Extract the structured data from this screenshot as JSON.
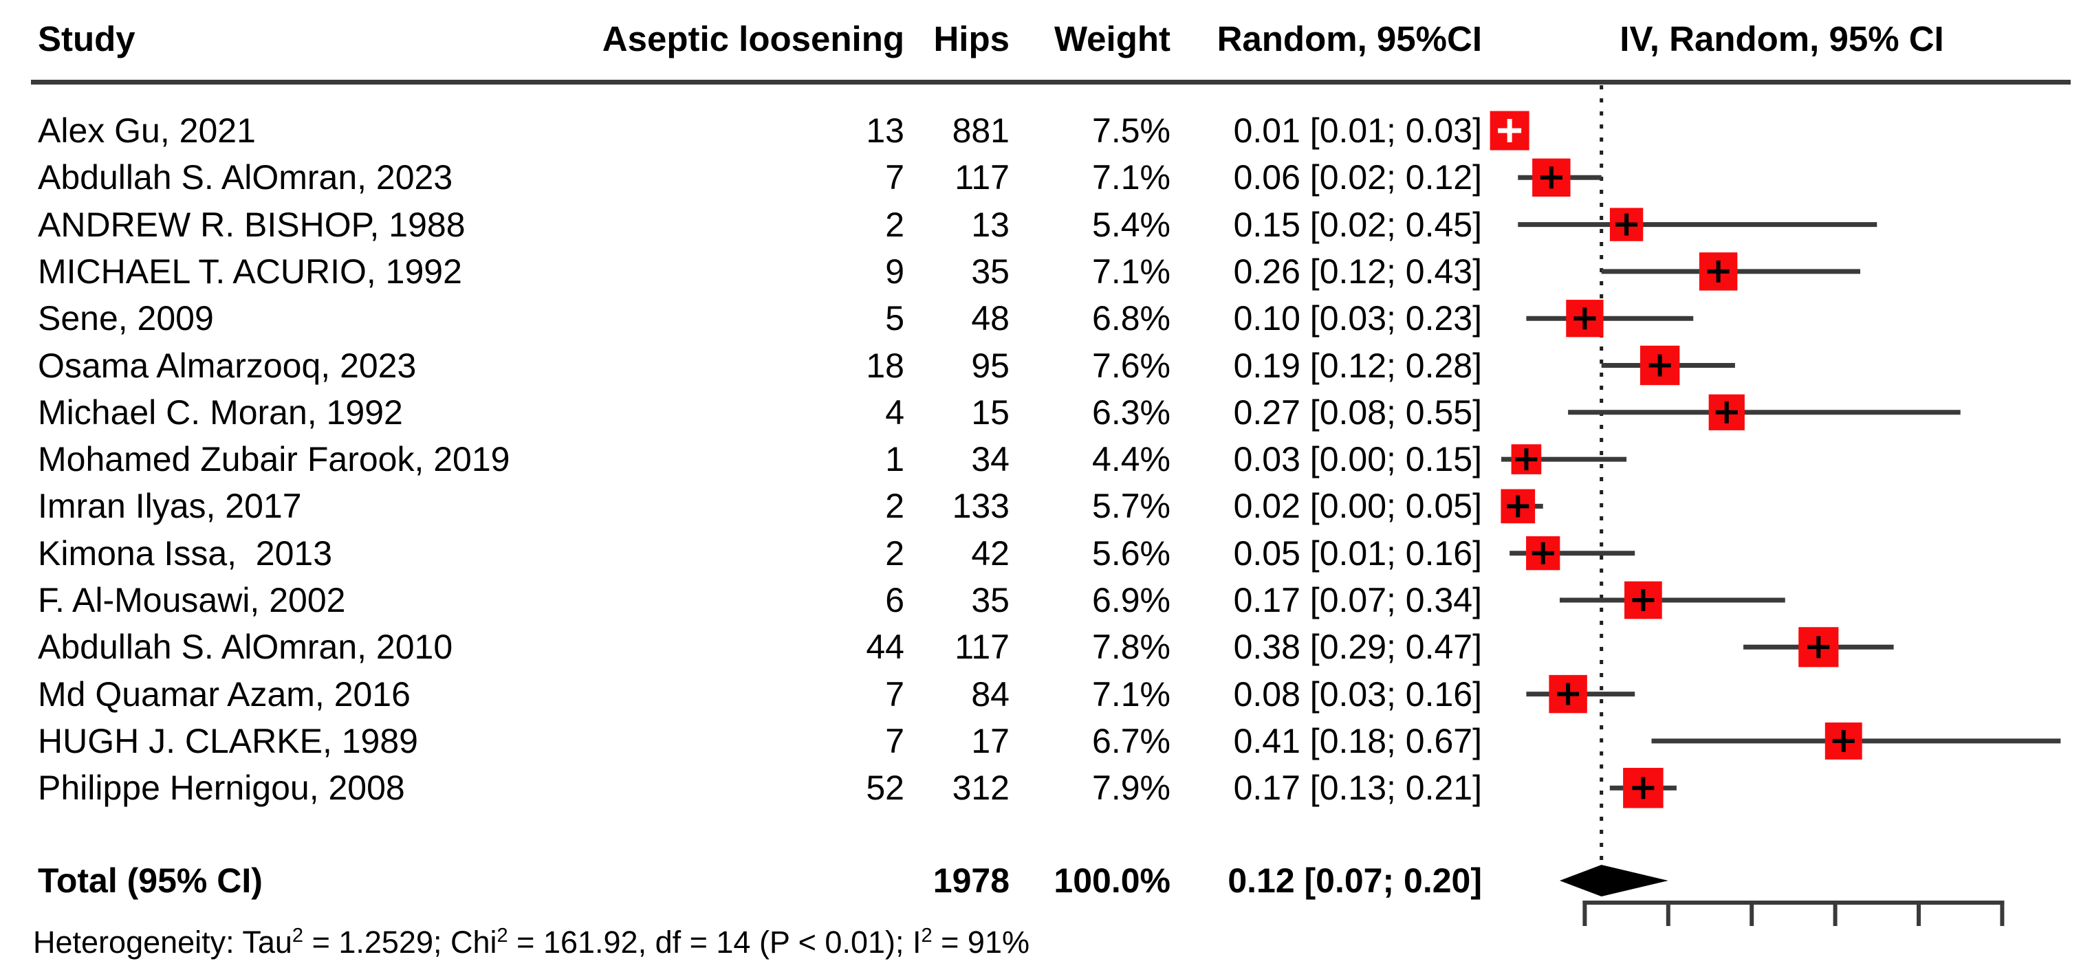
{
  "chart_data": {
    "type": "forest",
    "effect_measure": "proportion (IV, random effects)",
    "columns": [
      "Study",
      "Aseptic loosening",
      "Hips",
      "Weight",
      "Random, 95%CI",
      "IV, Random, 95% CI"
    ],
    "studies": [
      {
        "name": "Alex Gu, 2021",
        "events": 13,
        "hips": 881,
        "weight": "7.5%",
        "weight_value": 7.5,
        "estimate": 0.01,
        "ci_lower": 0.01,
        "ci_upper": 0.03,
        "ci_label": "0.01 [0.01; 0.03]"
      },
      {
        "name": "Abdullah S. AlOmran, 2023",
        "events": 7,
        "hips": 117,
        "weight": "7.1%",
        "weight_value": 7.1,
        "estimate": 0.06,
        "ci_lower": 0.02,
        "ci_upper": 0.12,
        "ci_label": "0.06 [0.02; 0.12]"
      },
      {
        "name": "ANDREW R. BISHOP, 1988",
        "events": 2,
        "hips": 13,
        "weight": "5.4%",
        "weight_value": 5.4,
        "estimate": 0.15,
        "ci_lower": 0.02,
        "ci_upper": 0.45,
        "ci_label": "0.15 [0.02; 0.45]"
      },
      {
        "name": "MICHAEL T. ACURIO, 1992",
        "events": 9,
        "hips": 35,
        "weight": "7.1%",
        "weight_value": 7.1,
        "estimate": 0.26,
        "ci_lower": 0.12,
        "ci_upper": 0.43,
        "ci_label": "0.26 [0.12; 0.43]"
      },
      {
        "name": "Sene, 2009",
        "events": 5,
        "hips": 48,
        "weight": "6.8%",
        "weight_value": 6.8,
        "estimate": 0.1,
        "ci_lower": 0.03,
        "ci_upper": 0.23,
        "ci_label": "0.10 [0.03; 0.23]"
      },
      {
        "name": "Osama Almarzooq, 2023",
        "events": 18,
        "hips": 95,
        "weight": "7.6%",
        "weight_value": 7.6,
        "estimate": 0.19,
        "ci_lower": 0.12,
        "ci_upper": 0.28,
        "ci_label": "0.19 [0.12; 0.28]"
      },
      {
        "name": "Michael C. Moran, 1992",
        "events": 4,
        "hips": 15,
        "weight": "6.3%",
        "weight_value": 6.3,
        "estimate": 0.27,
        "ci_lower": 0.08,
        "ci_upper": 0.55,
        "ci_label": "0.27 [0.08; 0.55]"
      },
      {
        "name": "Mohamed Zubair Farook, 2019",
        "events": 1,
        "hips": 34,
        "weight": "4.4%",
        "weight_value": 4.4,
        "estimate": 0.03,
        "ci_lower": 0.0,
        "ci_upper": 0.15,
        "ci_label": "0.03 [0.00; 0.15]"
      },
      {
        "name": "Imran Ilyas, 2017",
        "events": 2,
        "hips": 133,
        "weight": "5.7%",
        "weight_value": 5.7,
        "estimate": 0.02,
        "ci_lower": 0.0,
        "ci_upper": 0.05,
        "ci_label": "0.02 [0.00; 0.05]"
      },
      {
        "name": "Kimona Issa,  2013",
        "events": 2,
        "hips": 42,
        "weight": "5.6%",
        "weight_value": 5.6,
        "estimate": 0.05,
        "ci_lower": 0.01,
        "ci_upper": 0.16,
        "ci_label": "0.05 [0.01; 0.16]"
      },
      {
        "name": "F. Al-Mousawi, 2002",
        "events": 6,
        "hips": 35,
        "weight": "6.9%",
        "weight_value": 6.9,
        "estimate": 0.17,
        "ci_lower": 0.07,
        "ci_upper": 0.34,
        "ci_label": "0.17 [0.07; 0.34]"
      },
      {
        "name": "Abdullah S. AlOmran, 2010",
        "events": 44,
        "hips": 117,
        "weight": "7.8%",
        "weight_value": 7.8,
        "estimate": 0.38,
        "ci_lower": 0.29,
        "ci_upper": 0.47,
        "ci_label": "0.38 [0.29; 0.47]"
      },
      {
        "name": "Md Quamar Azam, 2016",
        "events": 7,
        "hips": 84,
        "weight": "7.1%",
        "weight_value": 7.1,
        "estimate": 0.08,
        "ci_lower": 0.03,
        "ci_upper": 0.16,
        "ci_label": "0.08 [0.03; 0.16]"
      },
      {
        "name": "HUGH J. CLARKE, 1989",
        "events": 7,
        "hips": 17,
        "weight": "6.7%",
        "weight_value": 6.7,
        "estimate": 0.41,
        "ci_lower": 0.18,
        "ci_upper": 0.67,
        "ci_label": "0.41 [0.18; 0.67]"
      },
      {
        "name": "Philippe Hernigou, 2008",
        "events": 52,
        "hips": 312,
        "weight": "7.9%",
        "weight_value": 7.9,
        "estimate": 0.17,
        "ci_lower": 0.13,
        "ci_upper": 0.21,
        "ci_label": "0.17 [0.13; 0.21]"
      }
    ],
    "total": {
      "label": "Total (95% CI)",
      "hips": 1978,
      "weight": "100.0%",
      "estimate": 0.12,
      "ci_lower": 0.07,
      "ci_upper": 0.2,
      "ci_label": "0.12 [0.07; 0.20]"
    },
    "heterogeneity": {
      "text_full": "Heterogeneity: Tau² = 1.2529; Chi² = 161.92, df = 14 (P < 0.01); I² = 91%",
      "segments": [
        {
          "text": "Heterogeneity: Tau"
        },
        {
          "sup": "2"
        },
        {
          "text": " = 1.2529; Chi"
        },
        {
          "sup": "2"
        },
        {
          "text": " = 161.92, df = 14 (P < 0.01); I"
        },
        {
          "sup": "2"
        },
        {
          "text": " = 91%"
        }
      ]
    },
    "axis": {
      "ticks": [
        0.1,
        0.2,
        0.3,
        0.4,
        0.5,
        0.6
      ],
      "tick_labels_visible": false,
      "reference_value": 0.12,
      "grid": false,
      "legend_position": "none"
    },
    "colors": {
      "square": "#f80b0e",
      "ci_line": "#3a3a3a",
      "diamond": "#000000",
      "reference_line": "#1f1f1f",
      "rule": "#3a3a3a",
      "text": "#000000"
    }
  }
}
